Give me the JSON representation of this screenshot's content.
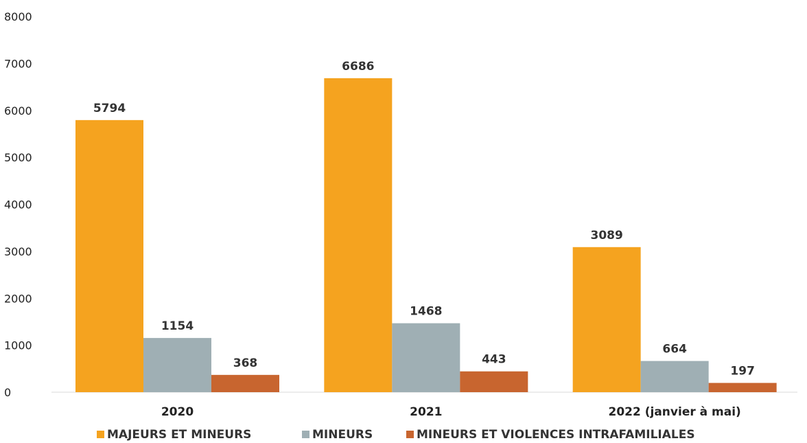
{
  "chart_data": {
    "type": "bar",
    "title": "",
    "xlabel": "",
    "ylabel": "",
    "ylim": [
      0,
      8000
    ],
    "yticks": [
      0,
      1000,
      2000,
      3000,
      4000,
      5000,
      6000,
      7000,
      8000
    ],
    "grid": false,
    "legend_position": "bottom",
    "categories": [
      "2020",
      "2021",
      "2022 (janvier à mai)"
    ],
    "series": [
      {
        "name": "MAJEURS ET MINEURS",
        "color": "#F5A31F",
        "values": [
          5794,
          6686,
          3089
        ]
      },
      {
        "name": "MINEURS",
        "color": "#9FAFB4",
        "values": [
          1154,
          1468,
          664
        ]
      },
      {
        "name": "MINEURS ET VIOLENCES INTRAFAMILIALES",
        "color": "#C8652F",
        "values": [
          368,
          443,
          197
        ]
      }
    ]
  }
}
